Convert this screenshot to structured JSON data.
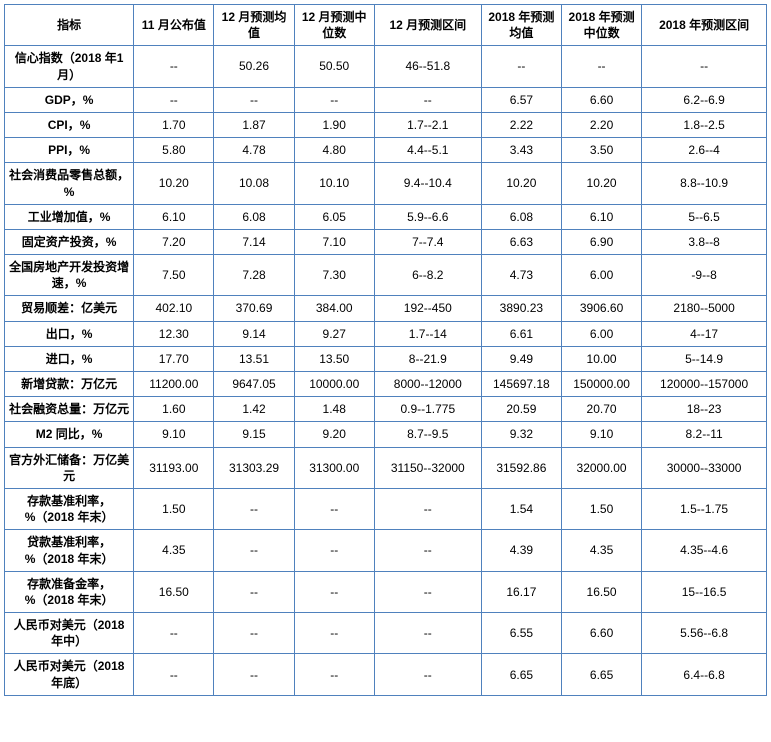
{
  "table": {
    "border_color": "#4f81bd",
    "background_color": "#ffffff",
    "fontsize": 12,
    "header_fontweight": "bold",
    "label_fontweight": "bold",
    "columns": [
      "指标",
      "11 月公布值",
      "12 月预测均值",
      "12 月预测中位数",
      "12 月预测区间",
      "2018 年预测均值",
      "2018 年预测中位数",
      "2018 年预测区间"
    ],
    "rows": [
      {
        "label": "信心指数（2018 年1 月）",
        "cells": [
          "--",
          "50.26",
          "50.50",
          "46--51.8",
          "--",
          "--",
          "--"
        ]
      },
      {
        "label": "GDP，%",
        "cells": [
          "--",
          "--",
          "--",
          "--",
          "6.57",
          "6.60",
          "6.2--6.9"
        ]
      },
      {
        "label": "CPI，%",
        "cells": [
          "1.70",
          "1.87",
          "1.90",
          "1.7--2.1",
          "2.22",
          "2.20",
          "1.8--2.5"
        ]
      },
      {
        "label": "PPI，%",
        "cells": [
          "5.80",
          "4.78",
          "4.80",
          "4.4--5.1",
          "3.43",
          "3.50",
          "2.6--4"
        ]
      },
      {
        "label": "社会消费品零售总额，%",
        "cells": [
          "10.20",
          "10.08",
          "10.10",
          "9.4--10.4",
          "10.20",
          "10.20",
          "8.8--10.9"
        ]
      },
      {
        "label": "工业增加值，%",
        "cells": [
          "6.10",
          "6.08",
          "6.05",
          "5.9--6.6",
          "6.08",
          "6.10",
          "5--6.5"
        ]
      },
      {
        "label": "固定资产投资，%",
        "cells": [
          "7.20",
          "7.14",
          "7.10",
          "7--7.4",
          "6.63",
          "6.90",
          "3.8--8"
        ]
      },
      {
        "label": "全国房地产开发投资增速，%",
        "cells": [
          "7.50",
          "7.28",
          "7.30",
          "6--8.2",
          "4.73",
          "6.00",
          "-9--8"
        ]
      },
      {
        "label": "贸易顺差：亿美元",
        "cells": [
          "402.10",
          "370.69",
          "384.00",
          "192--450",
          "3890.23",
          "3906.60",
          "2180--5000"
        ]
      },
      {
        "label": "出口，%",
        "cells": [
          "12.30",
          "9.14",
          "9.27",
          "1.7--14",
          "6.61",
          "6.00",
          "4--17"
        ]
      },
      {
        "label": "进口，%",
        "cells": [
          "17.70",
          "13.51",
          "13.50",
          "8--21.9",
          "9.49",
          "10.00",
          "5--14.9"
        ]
      },
      {
        "label": "新增贷款：万亿元",
        "cells": [
          "11200.00",
          "9647.05",
          "10000.00",
          "8000--12000",
          "145697.18",
          "150000.00",
          "120000--157000"
        ]
      },
      {
        "label": "社会融资总量：万亿元",
        "cells": [
          "1.60",
          "1.42",
          "1.48",
          "0.9--1.775",
          "20.59",
          "20.70",
          "18--23"
        ]
      },
      {
        "label": "M2 同比，%",
        "cells": [
          "9.10",
          "9.15",
          "9.20",
          "8.7--9.5",
          "9.32",
          "9.10",
          "8.2--11"
        ]
      },
      {
        "label": "官方外汇储备：万亿美元",
        "cells": [
          "31193.00",
          "31303.29",
          "31300.00",
          "31150--32000",
          "31592.86",
          "32000.00",
          "30000--33000"
        ]
      },
      {
        "label": "存款基准利率，%（2018 年末）",
        "cells": [
          "1.50",
          "--",
          "--",
          "--",
          "1.54",
          "1.50",
          "1.5--1.75"
        ]
      },
      {
        "label": "贷款基准利率，%（2018 年末）",
        "cells": [
          "4.35",
          "--",
          "--",
          "--",
          "4.39",
          "4.35",
          "4.35--4.6"
        ]
      },
      {
        "label": "存款准备金率，%（2018 年末）",
        "cells": [
          "16.50",
          "--",
          "--",
          "--",
          "16.17",
          "16.50",
          "15--16.5"
        ]
      },
      {
        "label": "人民币对美元（2018 年中）",
        "cells": [
          "--",
          "--",
          "--",
          "--",
          "6.55",
          "6.60",
          "5.56--6.8"
        ]
      },
      {
        "label": "人民币对美元（2018 年底）",
        "cells": [
          "--",
          "--",
          "--",
          "--",
          "6.65",
          "6.65",
          "6.4--6.8"
        ]
      }
    ]
  }
}
